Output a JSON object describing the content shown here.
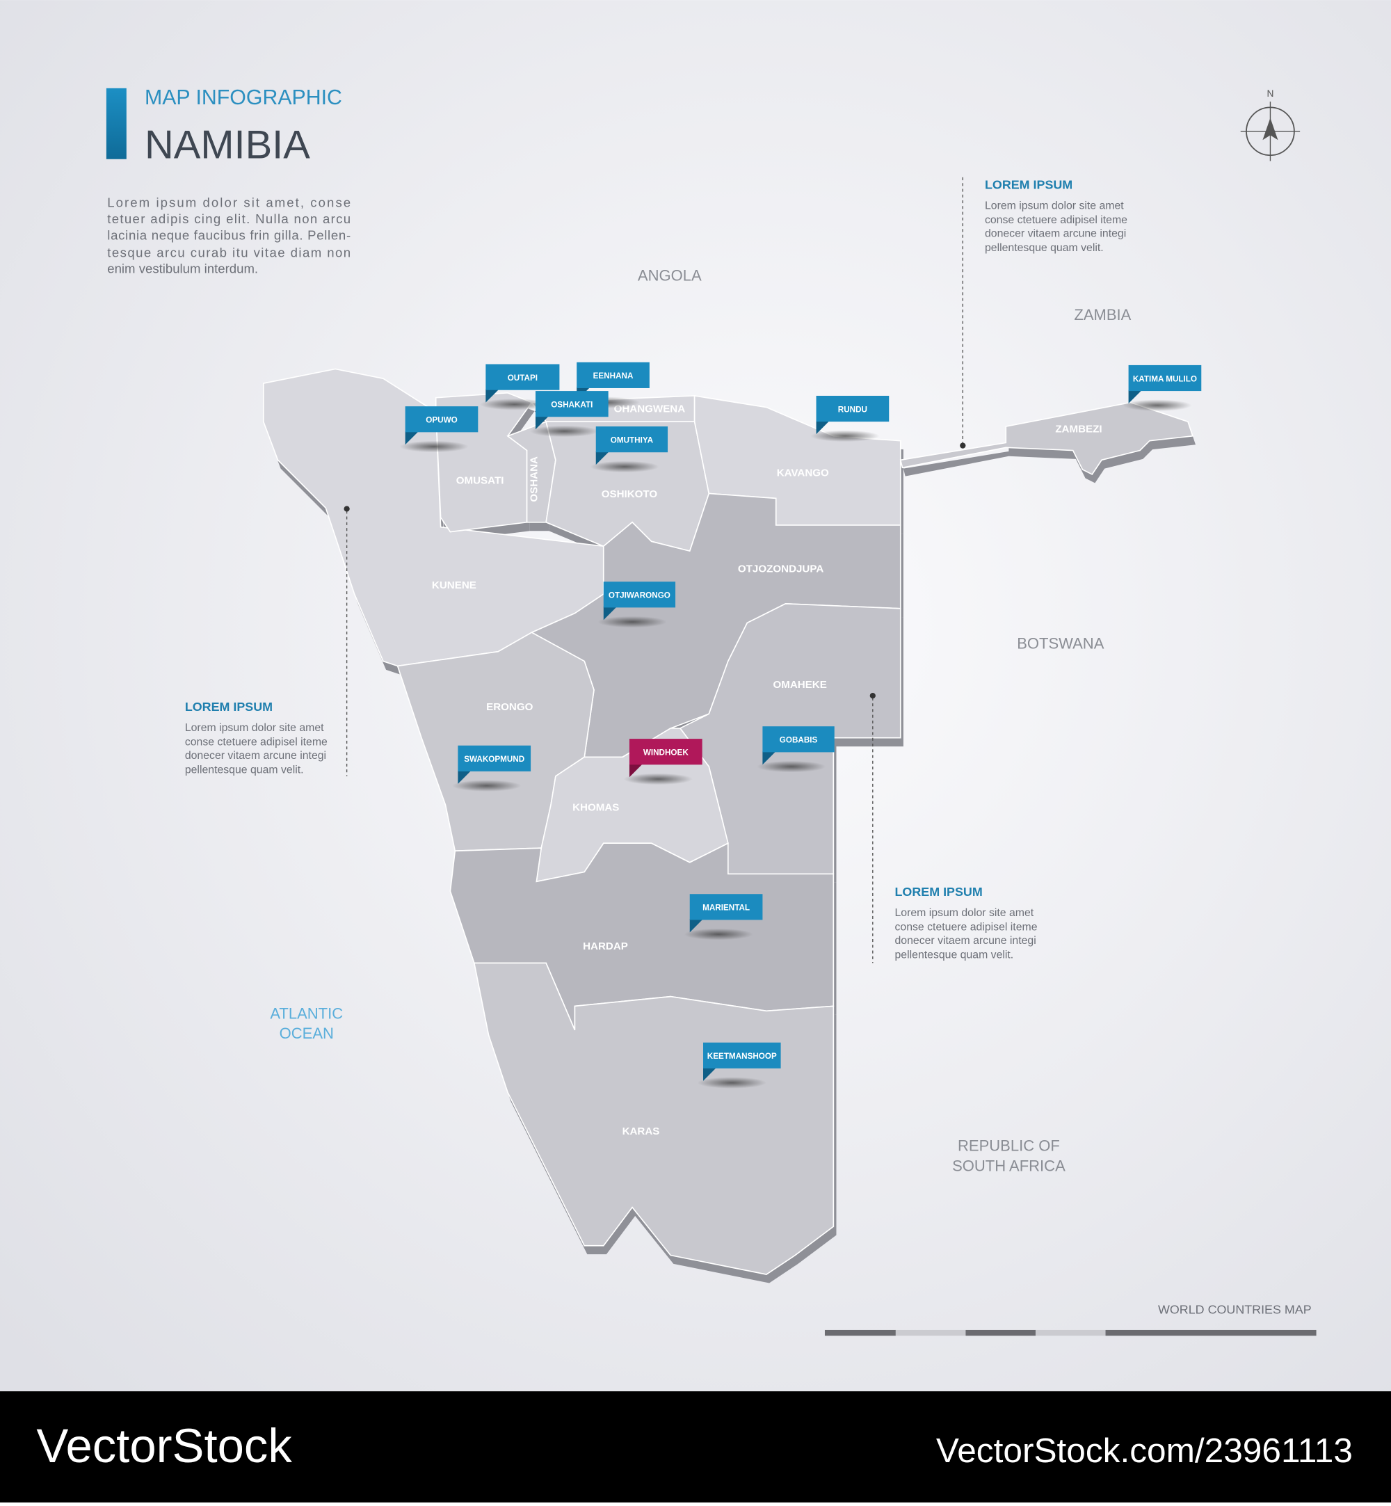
{
  "header": {
    "subtitle": "MAP INFOGRAPHIC",
    "title": "NAMIBIA"
  },
  "intro": [
    "Lorem ipsum dolor sit amet, conse",
    "tetuer adipis cing elit. Nulla non arcu",
    "lacinia neque faucibus frin gilla. Pellen-",
    "tesque arcu curab itu vitae diam non",
    "enim vestibulum interdum."
  ],
  "neighbors": {
    "angola": "ANGOLA",
    "zambia": "ZAMBIA",
    "botswana": "BOTSWANA",
    "south_africa": [
      "REPUBLIC OF",
      "SOUTH AFRICA"
    ],
    "ocean": [
      "ATLANTIC",
      "OCEAN"
    ]
  },
  "compass": "N",
  "regions": {
    "kunene": "KUNENE",
    "omusati": "OMUSATI",
    "oshana": "OSHANA",
    "ohangwena": "OHANGWENA",
    "oshikoto": "OSHIKOTO",
    "kavango": "KAVANGO",
    "zambezi": "ZAMBEZI",
    "otjozondjupa": "OTJOZONDJUPA",
    "omaheke": "OMAHEKE",
    "erongo": "ERONGO",
    "khomas": "KHOMAS",
    "hardap": "HARDAP",
    "karas": "KARAS"
  },
  "cities": {
    "outapi": "OUTAPI",
    "eenhana": "EENHANA",
    "oshakati": "OSHAKATI",
    "opuwo": "OPUWO",
    "omuthiya": "OMUTHIYA",
    "rundu": "RUNDU",
    "katima_mulilo": "KATIMA MULILO",
    "otjiwarongo": "OTJIWARONGO",
    "swakopmund": "SWAKOPMUND",
    "windhoek": "WINDHOEK",
    "gobabis": "GOBABIS",
    "mariental": "MARIENTAL",
    "keetmanshoop": "KEETMANSHOOP"
  },
  "info_boxes": [
    {
      "title": "LOREM IPSUM",
      "lines": [
        "Lorem ipsum dolor site amet",
        "conse ctetuere adipisel iteme",
        "donecer vitaem arcune integi",
        "pellentesque quam velit."
      ]
    },
    {
      "title": "LOREM IPSUM",
      "lines": [
        "Lorem ipsum dolor site amet",
        "conse ctetuere adipisel iteme",
        "donecer vitaem arcune integi",
        "pellentesque quam velit."
      ]
    },
    {
      "title": "LOREM IPSUM",
      "lines": [
        "Lorem ipsum dolor site amet",
        "conse ctetuere adipisel iteme",
        "donecer vitaem arcune integi",
        "pellentesque quam velit."
      ]
    }
  ],
  "footer": "WORLD COUNTRIES MAP",
  "watermark": {
    "brand": "VectorStock",
    "id": "VectorStock.com/23961113"
  }
}
